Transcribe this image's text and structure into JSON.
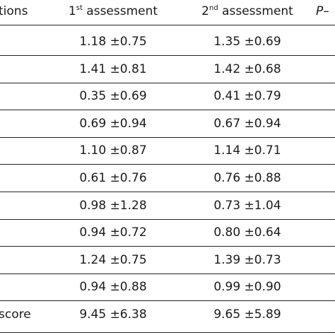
{
  "table": {
    "headers": {
      "col0": "tions",
      "col1_num": "1",
      "col1_sup": "st",
      "col1_rest": " assessment",
      "col2_num": "2",
      "col2_sup": "nd",
      "col2_rest": " assessment",
      "col3": "P–"
    },
    "rows": [
      {
        "label": "",
        "first": "1.18 ±0.75",
        "second": "1.35 ±0.69"
      },
      {
        "label": "",
        "first": "1.41 ±0.81",
        "second": "1.42 ±0.68"
      },
      {
        "label": "",
        "first": "0.35 ±0.69",
        "second": "0.41 ±0.79"
      },
      {
        "label": "",
        "first": "0.69 ±0.94",
        "second": "0.67 ±0.94"
      },
      {
        "label": "",
        "first": "1.10 ±0.87",
        "second": "1.14 ±0.71"
      },
      {
        "label": "",
        "first": "0.61 ±0.76",
        "second": "0.76 ±0.88"
      },
      {
        "label": "",
        "first": "0.98 ±1.28",
        "second": "0.73 ±1.04"
      },
      {
        "label": "",
        "first": "0.94 ±0.72",
        "second": "0.80 ±0.64"
      },
      {
        "label": "",
        "first": "1.24 ±0.75",
        "second": "1.39 ±0.73"
      },
      {
        "label": "",
        "first": "0.94 ±0.88",
        "second": "0.99 ±0.90"
      },
      {
        "label": "score",
        "first": "9.45 ±6.38",
        "second": "9.65 ±5.89"
      }
    ]
  }
}
